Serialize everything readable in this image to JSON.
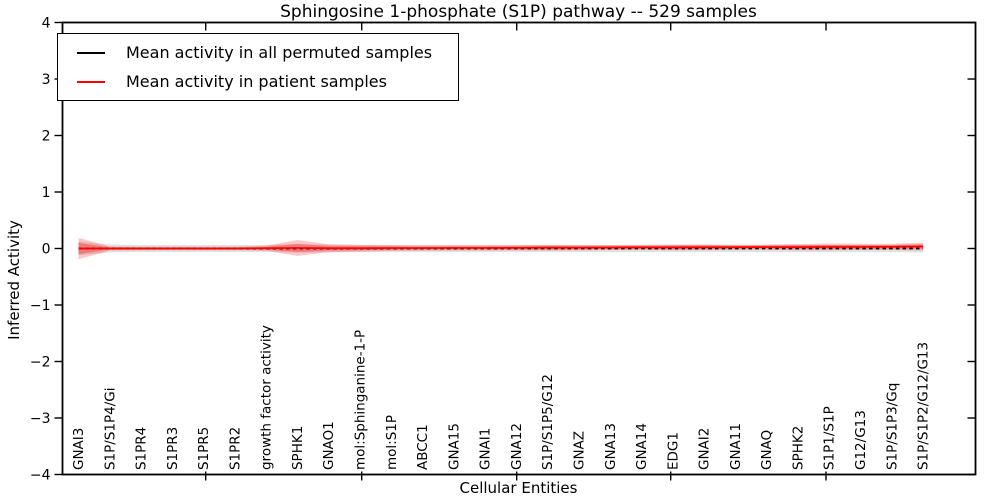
{
  "title": "Sphingosine 1-phosphate (S1P) pathway -- 529 samples",
  "legend": {
    "items": [
      {
        "label": "Mean activity in all permuted samples",
        "color": "#000000"
      },
      {
        "label": "Mean activity in patient samples",
        "color": "#ff0000"
      }
    ]
  },
  "chart_data": {
    "type": "line",
    "title": "Sphingosine 1-phosphate (S1P) pathway -- 529 samples",
    "xlabel": "Cellular Entities",
    "ylabel": "Inferred Activity",
    "ylim": [
      -4,
      4
    ],
    "yticks": [
      4,
      3,
      2,
      1,
      0,
      -1,
      -2,
      -3,
      -4
    ],
    "grid": false,
    "legend_position": "upper left",
    "tick_label_rotation": "vertical",
    "categories": [
      "GNAI3",
      "S1P/S1P4/Gi",
      "S1PR4",
      "S1PR3",
      "S1PR5",
      "S1PR2",
      "growth factor activity",
      "SPHK1",
      "GNAO1",
      "mol:Sphinganine-1-P",
      "mol:S1P",
      "ABCC1",
      "GNA15",
      "GNAI1",
      "GNA12",
      "S1P/S1P5/G12",
      "GNAZ",
      "GNA13",
      "GNA14",
      "EDG1",
      "GNAI2",
      "GNA11",
      "GNAQ",
      "SPHK2",
      "S1P1/S1P",
      "G12/G13",
      "S1P/S1P3/Gq",
      "S1P/S1P2/G12/G13"
    ],
    "series": [
      {
        "id": "permuted-mean",
        "name": "Mean activity in all permuted samples",
        "color": "#000000",
        "style": "dashed",
        "values": [
          0,
          0,
          0,
          0,
          0,
          0,
          0,
          0,
          0,
          0,
          0,
          0,
          0,
          0,
          0,
          0,
          0,
          0,
          0,
          0,
          0,
          0,
          0,
          0,
          0,
          0,
          0,
          0
        ]
      },
      {
        "id": "patient-mean",
        "name": "Mean activity in patient samples",
        "color": "#ff0000",
        "style": "solid",
        "values": [
          0,
          0,
          0,
          0,
          0,
          0,
          0.005,
          0.01,
          0.005,
          0.005,
          0.008,
          0.008,
          0.01,
          0.01,
          0.012,
          0.015,
          0.015,
          0.018,
          0.02,
          0.02,
          0.022,
          0.022,
          0.025,
          0.025,
          0.028,
          0.028,
          0.03,
          0.035
        ]
      }
    ],
    "bands": [
      {
        "name": "permuted-std",
        "series_index": 0,
        "color": "#aaaaaa",
        "opacity": 0.35,
        "halfwidths": [
          0.12,
          0.07,
          0.065,
          0.065,
          0.065,
          0.065,
          0.065,
          0.07,
          0.07,
          0.065,
          0.065,
          0.065,
          0.065,
          0.065,
          0.065,
          0.065,
          0.065,
          0.065,
          0.065,
          0.065,
          0.065,
          0.065,
          0.065,
          0.065,
          0.065,
          0.065,
          0.065,
          0.07
        ]
      },
      {
        "name": "patient-std-outer",
        "series_index": 1,
        "color": "#ff0000",
        "opacity": 0.22,
        "halfwidths": [
          0.19,
          0.035,
          0.03,
          0.03,
          0.03,
          0.03,
          0.045,
          0.14,
          0.07,
          0.06,
          0.05,
          0.045,
          0.045,
          0.045,
          0.045,
          0.05,
          0.045,
          0.045,
          0.045,
          0.05,
          0.05,
          0.045,
          0.045,
          0.055,
          0.06,
          0.055,
          0.055,
          0.07
        ]
      },
      {
        "name": "patient-std-inner",
        "series_index": 1,
        "color": "#ff0000",
        "opacity": 0.3,
        "halfwidths": [
          0.1,
          0.02,
          0.018,
          0.018,
          0.018,
          0.018,
          0.025,
          0.075,
          0.04,
          0.035,
          0.03,
          0.025,
          0.025,
          0.025,
          0.025,
          0.03,
          0.025,
          0.025,
          0.025,
          0.03,
          0.03,
          0.025,
          0.025,
          0.03,
          0.035,
          0.03,
          0.03,
          0.04
        ]
      }
    ]
  }
}
